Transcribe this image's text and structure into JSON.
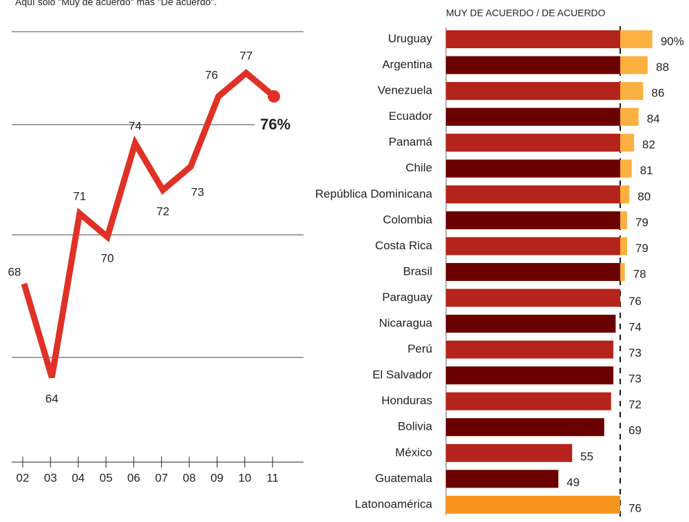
{
  "chart_data": [
    {
      "type": "line",
      "subtitle": "Aquí solo \"Muy de acuerdo\" más \"De acuerdo\".",
      "categories": [
        "02",
        "03",
        "04",
        "05",
        "06",
        "07",
        "08",
        "09",
        "10",
        "11"
      ],
      "values": [
        68,
        64,
        71,
        70,
        74,
        72,
        73,
        76,
        77,
        76
      ],
      "color": "#e03127",
      "ylim": [
        60,
        81
      ],
      "annotation": "76%"
    },
    {
      "type": "hbar",
      "axis_label": "MUY DE ACUERDO / DE ACUERDO",
      "categories": [
        "Uruguay",
        "Argentina",
        "Venezuela",
        "Ecuador",
        "Panamá",
        "Chile",
        "República Dominicana",
        "Colombia",
        "Costa Rica",
        "Brasil",
        "Paraguay",
        "Nicaragua",
        "Perú",
        "El Salvador",
        "Honduras",
        "Bolivia",
        "México",
        "Guatemala",
        "Latonoamérica"
      ],
      "values": [
        90,
        88,
        86,
        84,
        82,
        81,
        80,
        79,
        79,
        78,
        76,
        74,
        73,
        73,
        72,
        69,
        55,
        49,
        76
      ],
      "value_labels": [
        "90%",
        "88",
        "86",
        "84",
        "82",
        "81",
        "80",
        "79",
        "79",
        "78",
        "76",
        "74",
        "73",
        "73",
        "72",
        "69",
        "55",
        "49",
        "76"
      ],
      "colors": [
        "#b5241c",
        "#6b0000"
      ],
      "above_color": "#fbb040",
      "highlight_color": "#f7941d",
      "xlim": [
        0,
        100
      ]
    }
  ]
}
